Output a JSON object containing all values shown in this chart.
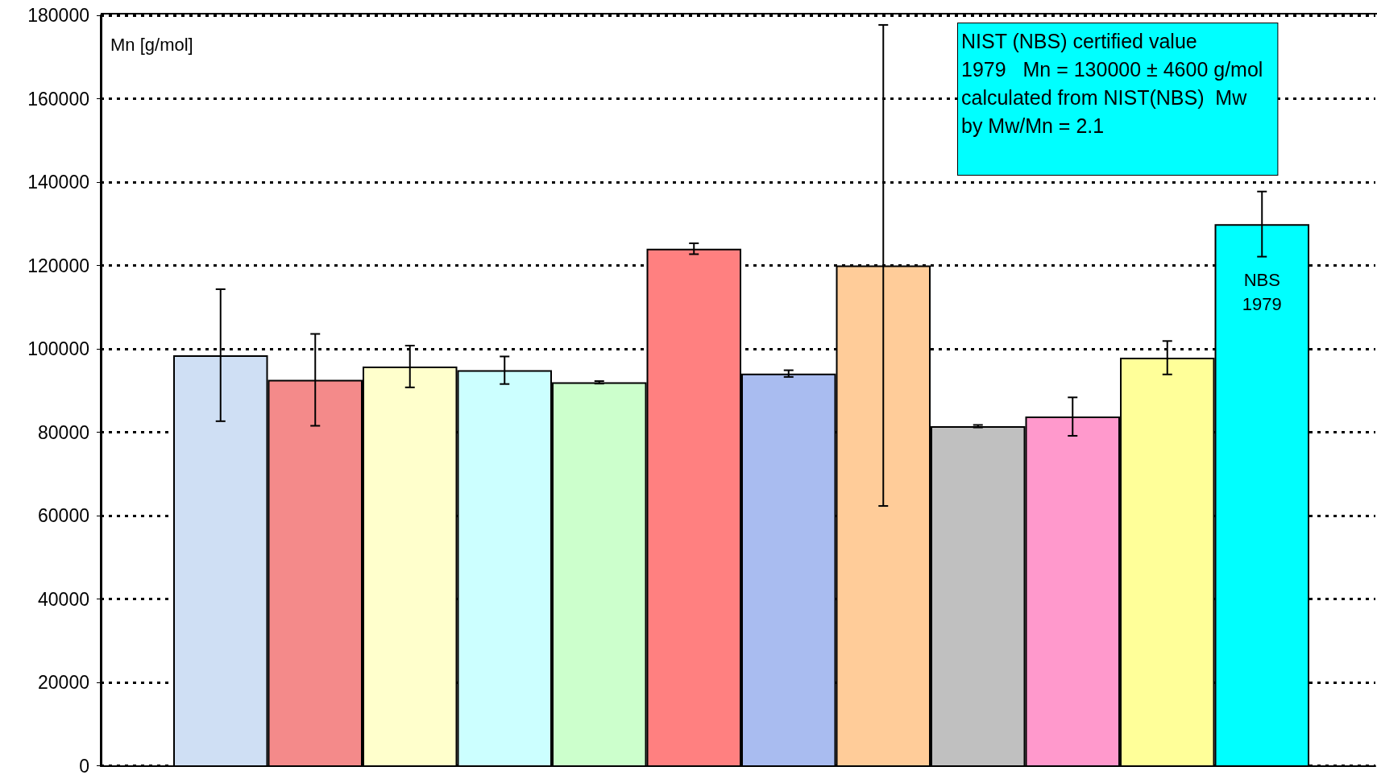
{
  "chart_data": {
    "type": "bar",
    "ylabel": "Mn [g/mol]",
    "categories": [
      null,
      null,
      null,
      null,
      null,
      null,
      null,
      null,
      null,
      null,
      null,
      null
    ],
    "values": [
      98600,
      92700,
      95900,
      95000,
      92100,
      124100,
      94200,
      120100,
      81600,
      83900,
      98000,
      130000
    ],
    "errors": [
      15800,
      11000,
      5000,
      3300,
      300,
      1300,
      800,
      57600,
      300,
      4600,
      4000,
      7800
    ],
    "colors": [
      "#cfdff4",
      "#f48a8a",
      "#ffffcc",
      "#ccffff",
      "#ccffcc",
      "#ff8080",
      "#a9bcf0",
      "#ffcc99",
      "#c0c0c0",
      "#ff99cc",
      "#ffff99",
      "#00ffff"
    ],
    "value_labels": [
      null,
      null,
      null,
      null,
      null,
      null,
      null,
      null,
      null,
      null,
      null,
      "NBS\n1979"
    ],
    "ylim": [
      0,
      180000
    ],
    "yticks": [
      0,
      20000,
      40000,
      60000,
      80000,
      100000,
      120000,
      140000,
      160000,
      180000
    ],
    "grid": "y",
    "annotations": [
      "NIST (NBS) certified value\n1979   Mn = 130000 ± 4600 g/mol\ncalculated from NIST(NBS)  Mw\nby Mw/Mn = 2.1"
    ]
  }
}
